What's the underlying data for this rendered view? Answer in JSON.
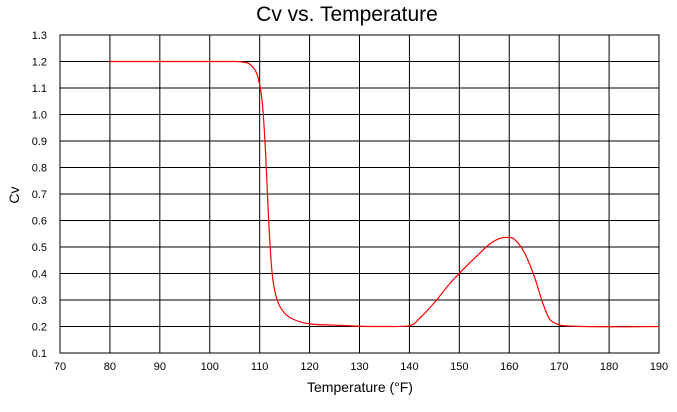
{
  "chart_data": {
    "type": "line",
    "title": "Cv vs. Temperature",
    "xlabel": "Temperature (°F)",
    "ylabel": "Cv",
    "xlim": [
      70,
      190
    ],
    "ylim": [
      0.1,
      1.3
    ],
    "x_ticks": [
      70,
      80,
      90,
      100,
      110,
      120,
      130,
      140,
      150,
      160,
      170,
      180,
      190
    ],
    "y_ticks": [
      0.1,
      0.2,
      0.3,
      0.4,
      0.5,
      0.6,
      0.7,
      0.8,
      0.9,
      1.0,
      1.1,
      1.2,
      1.3
    ],
    "y_tick_labels": [
      "0.1",
      "0.2",
      "0.3",
      "0.4",
      "0.5",
      "0.6",
      "0.7",
      "0.8",
      "0.9",
      "1.0",
      "1.1",
      "1.2",
      "1.3"
    ],
    "grid": true,
    "series": [
      {
        "color": "#ff0000",
        "x": [
          80,
          90,
          100,
          105,
          106.5,
          108,
          109.5,
          110.5,
          111.2,
          111.8,
          112.5,
          113.5,
          115,
          117,
          120,
          125,
          130,
          135,
          140,
          142,
          145,
          148,
          151,
          154,
          156,
          158,
          159.5,
          161,
          163,
          165,
          166.5,
          168,
          169.5,
          171,
          175,
          180,
          185,
          190
        ],
        "y": [
          1.2,
          1.2,
          1.2,
          1.2,
          1.198,
          1.19,
          1.15,
          1.05,
          0.85,
          0.6,
          0.4,
          0.3,
          0.25,
          0.225,
          0.21,
          0.205,
          0.201,
          0.2,
          0.203,
          0.23,
          0.29,
          0.36,
          0.42,
          0.475,
          0.51,
          0.532,
          0.536,
          0.53,
          0.48,
          0.39,
          0.3,
          0.23,
          0.21,
          0.203,
          0.2,
          0.199,
          0.199,
          0.2
        ]
      }
    ]
  }
}
